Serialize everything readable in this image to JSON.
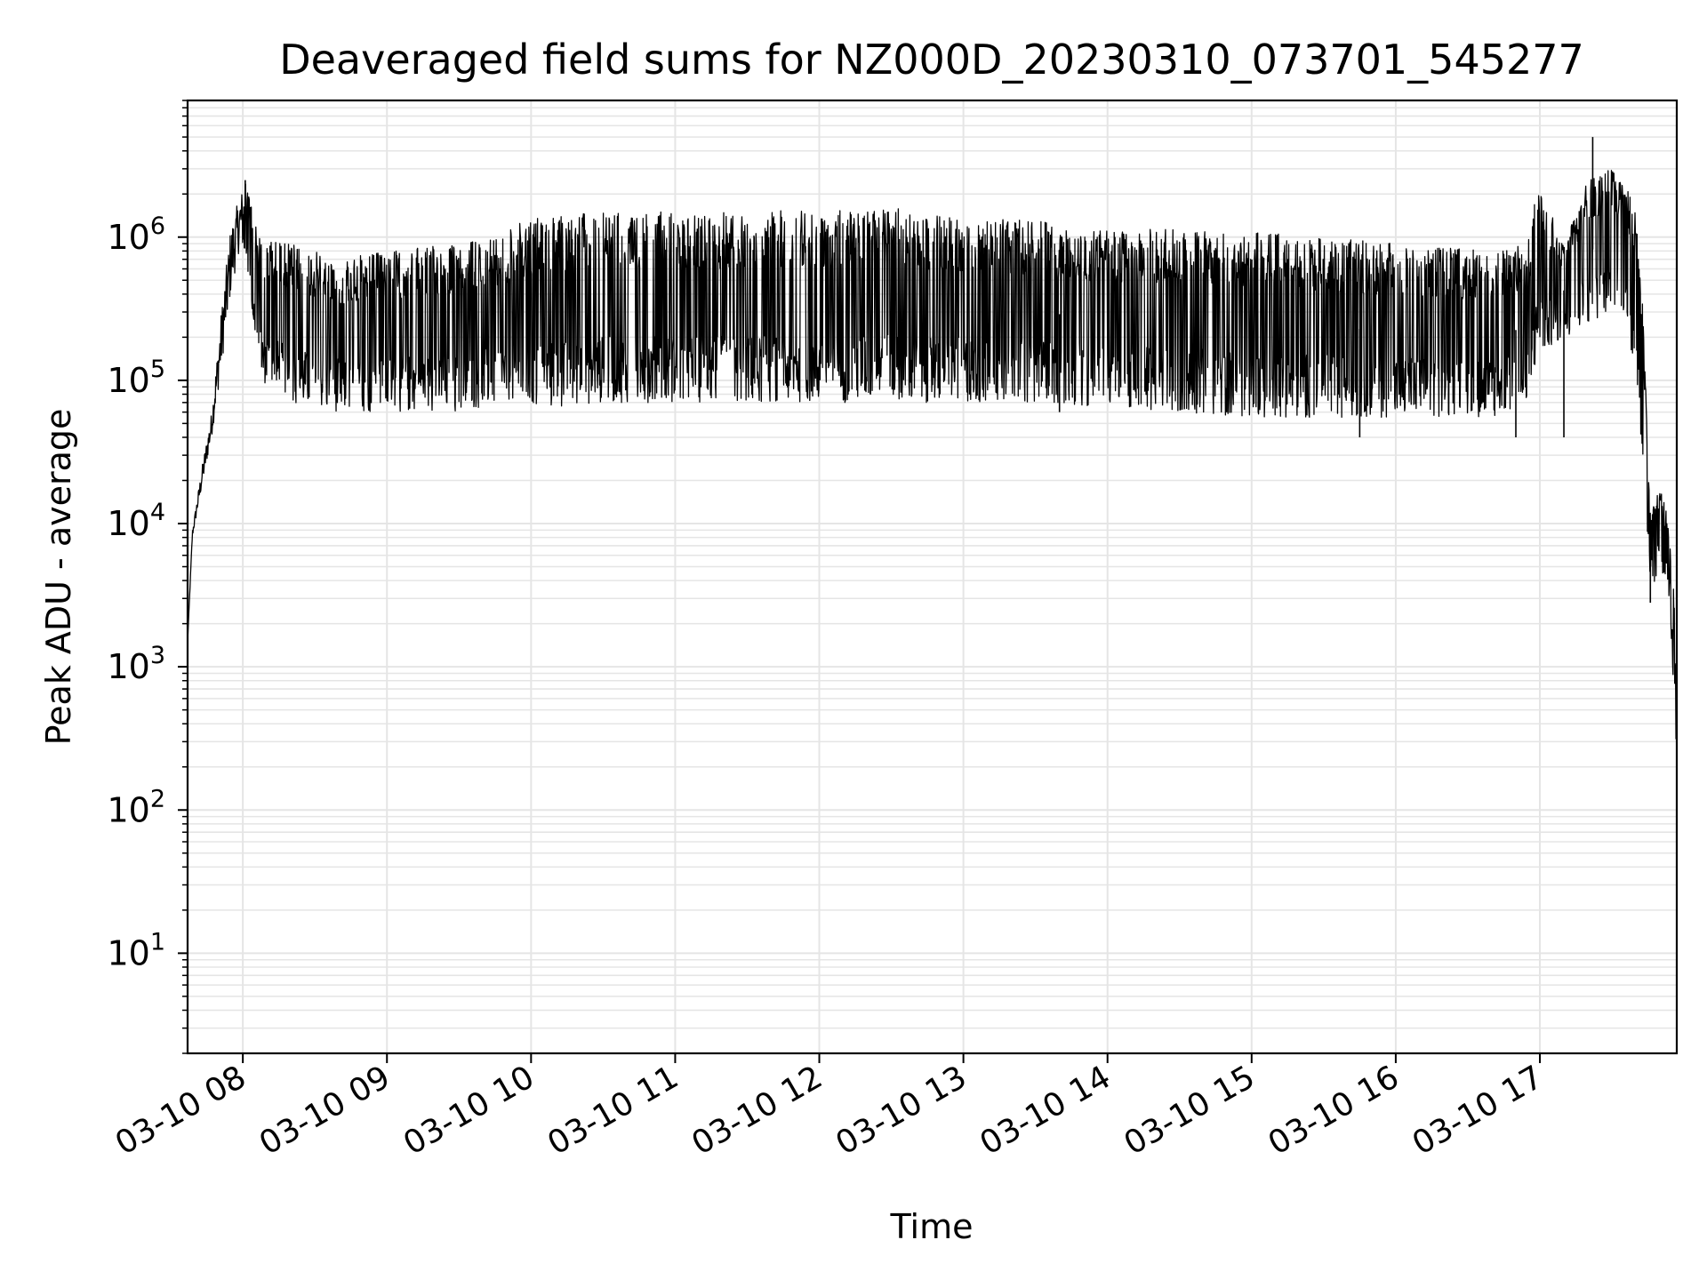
{
  "chart_data": {
    "type": "line",
    "title": "Deaveraged field sums for NZ000D_20230310_073701_545277",
    "xlabel": "Time",
    "ylabel": "Peak ADU - average",
    "yscale": "log",
    "ylim": [
      2,
      9000000
    ],
    "xlim": [
      "03-10 07:37",
      "03-10 17:57"
    ],
    "grid": true,
    "grid_minor": true,
    "line_color": "#000000",
    "grid_color": "#e5e5e5",
    "x_ticks": [
      {
        "time": "03-10 08:00",
        "label": "03-10 08"
      },
      {
        "time": "03-10 09:00",
        "label": "03-10 09"
      },
      {
        "time": "03-10 10:00",
        "label": "03-10 10"
      },
      {
        "time": "03-10 11:00",
        "label": "03-10 11"
      },
      {
        "time": "03-10 12:00",
        "label": "03-10 12"
      },
      {
        "time": "03-10 13:00",
        "label": "03-10 13"
      },
      {
        "time": "03-10 14:00",
        "label": "03-10 14"
      },
      {
        "time": "03-10 15:00",
        "label": "03-10 15"
      },
      {
        "time": "03-10 16:00",
        "label": "03-10 16"
      },
      {
        "time": "03-10 17:00",
        "label": "03-10 17"
      }
    ],
    "y_ticks": [
      {
        "value": 10,
        "base": "10",
        "exp": "1"
      },
      {
        "value": 100,
        "base": "10",
        "exp": "2"
      },
      {
        "value": 1000,
        "base": "10",
        "exp": "3"
      },
      {
        "value": 10000,
        "base": "10",
        "exp": "4"
      },
      {
        "value": 100000,
        "base": "10",
        "exp": "5"
      },
      {
        "value": 1000000,
        "base": "10",
        "exp": "6"
      }
    ],
    "envelope": [
      {
        "time": "03-10 07:37",
        "low": 1500,
        "high": 1500
      },
      {
        "time": "03-10 07:39",
        "low": 8000,
        "high": 9000
      },
      {
        "time": "03-10 07:43",
        "low": 18000,
        "high": 25000
      },
      {
        "time": "03-10 07:47",
        "low": 40000,
        "high": 60000
      },
      {
        "time": "03-10 07:51",
        "low": 120000,
        "high": 300000
      },
      {
        "time": "03-10 07:55",
        "low": 400000,
        "high": 1200000
      },
      {
        "time": "03-10 07:59",
        "low": 900000,
        "high": 2000000
      },
      {
        "time": "03-10 08:01",
        "low": 700000,
        "high": 2500000
      },
      {
        "time": "03-10 08:07",
        "low": 100000,
        "high": 1000000
      },
      {
        "time": "03-10 08:20",
        "low": 70000,
        "high": 900000
      },
      {
        "time": "03-10 08:40",
        "low": 60000,
        "high": 700000
      },
      {
        "time": "03-10 09:00",
        "low": 60000,
        "high": 800000
      },
      {
        "time": "03-10 09:30",
        "low": 60000,
        "high": 900000
      },
      {
        "time": "03-10 09:50",
        "low": 70000,
        "high": 1100000
      },
      {
        "time": "03-10 10:00",
        "low": 60000,
        "high": 1400000
      },
      {
        "time": "03-10 10:30",
        "low": 70000,
        "high": 1500000
      },
      {
        "time": "03-10 11:00",
        "low": 70000,
        "high": 1500000
      },
      {
        "time": "03-10 12:00",
        "low": 70000,
        "high": 1550000
      },
      {
        "time": "03-10 12:30",
        "low": 70000,
        "high": 1600000
      },
      {
        "time": "03-10 13:00",
        "low": 70000,
        "high": 1400000
      },
      {
        "time": "03-10 13:30",
        "low": 70000,
        "high": 1300000
      },
      {
        "time": "03-10 14:00",
        "low": 65000,
        "high": 1100000
      },
      {
        "time": "03-10 14:30",
        "low": 60000,
        "high": 1200000
      },
      {
        "time": "03-10 15:00",
        "low": 55000,
        "high": 1100000
      },
      {
        "time": "03-10 15:30",
        "low": 55000,
        "high": 1000000
      },
      {
        "time": "03-10 16:00",
        "low": 55000,
        "high": 900000
      },
      {
        "time": "03-10 16:40",
        "low": 55000,
        "high": 800000
      },
      {
        "time": "03-10 16:55",
        "low": 60000,
        "high": 900000
      },
      {
        "time": "03-10 16:59",
        "low": 150000,
        "high": 2500000
      },
      {
        "time": "03-10 17:10",
        "low": 200000,
        "high": 900000
      },
      {
        "time": "03-10 17:20",
        "low": 250000,
        "high": 2500000
      },
      {
        "time": "03-10 17:30",
        "low": 300000,
        "high": 3000000
      },
      {
        "time": "03-10 17:35",
        "low": 300000,
        "high": 2500000
      },
      {
        "time": "03-10 17:40",
        "low": 100000,
        "high": 1500000
      },
      {
        "time": "03-10 17:43",
        "low": 20000,
        "high": 300000
      },
      {
        "time": "03-10 17:46",
        "low": 3000,
        "high": 15000
      },
      {
        "time": "03-10 17:50",
        "low": 5000,
        "high": 18000
      },
      {
        "time": "03-10 17:54",
        "low": 3000,
        "high": 10000
      },
      {
        "time": "03-10 17:56",
        "low": 500,
        "high": 3000
      },
      {
        "time": "03-10 17:57",
        "low": 200,
        "high": 400
      }
    ],
    "spikes": [
      {
        "time": "03-10 08:01",
        "value": 2500000
      },
      {
        "time": "03-10 13:40",
        "value": 60000
      },
      {
        "time": "03-10 15:45",
        "value": 40000
      },
      {
        "time": "03-10 16:50",
        "value": 40000
      },
      {
        "time": "03-10 17:10",
        "value": 40000
      },
      {
        "time": "03-10 17:22",
        "value": 5000000
      },
      {
        "time": "03-10 17:46",
        "value": 2800
      }
    ]
  }
}
